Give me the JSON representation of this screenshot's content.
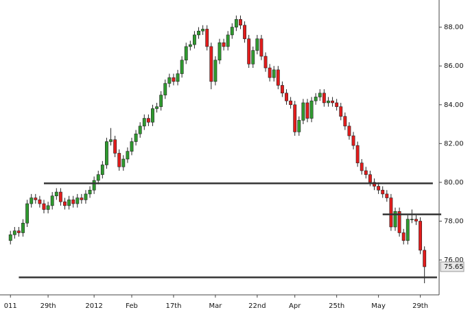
{
  "chart_data": {
    "type": "candlestick",
    "open": [
      77.0,
      77.3,
      77.5,
      77.4,
      77.9,
      78.9,
      79.2,
      79.1,
      78.9,
      78.6,
      78.8,
      79.3,
      79.5,
      79.0,
      78.8,
      79.1,
      78.9,
      79.2,
      79.1,
      79.4,
      79.6,
      80.1,
      80.4,
      80.9,
      82.1,
      82.2,
      81.5,
      80.8,
      81.2,
      81.6,
      82.1,
      82.5,
      82.9,
      83.3,
      83.1,
      83.8,
      83.9,
      84.5,
      85.1,
      85.4,
      85.2,
      85.6,
      86.3,
      87.0,
      87.1,
      87.6,
      87.8,
      87.9,
      87.0,
      85.2,
      86.3,
      87.2,
      87.0,
      87.6,
      88.0,
      88.4,
      88.1,
      87.4,
      86.1,
      86.8,
      87.4,
      86.5,
      85.9,
      85.4,
      85.8,
      85.0,
      84.6,
      84.2,
      84.0,
      82.6,
      83.2,
      84.1,
      83.3,
      84.2,
      84.4,
      84.6,
      84.1,
      84.2,
      84.1,
      83.9,
      83.4,
      82.9,
      82.4,
      81.9,
      81.0,
      80.6,
      80.4,
      80.0,
      79.8,
      79.6,
      79.4,
      79.2,
      77.7,
      78.5,
      77.4,
      77.0,
      78.1,
      78.1,
      78.0,
      76.5
    ],
    "high": [
      77.5,
      77.7,
      77.7,
      78.1,
      79.1,
      79.4,
      79.4,
      79.3,
      79.1,
      79.0,
      79.5,
      79.7,
      79.7,
      79.2,
      79.3,
      79.3,
      79.4,
      79.4,
      79.6,
      79.8,
      80.3,
      80.6,
      81.1,
      82.3,
      82.8,
      82.4,
      81.7,
      81.4,
      81.8,
      82.3,
      82.7,
      83.1,
      83.5,
      83.5,
      84.0,
      84.1,
      84.7,
      85.3,
      85.6,
      85.6,
      85.8,
      86.5,
      87.2,
      87.3,
      87.8,
      88.0,
      88.1,
      88.1,
      87.2,
      86.5,
      87.4,
      87.4,
      87.8,
      88.2,
      88.6,
      88.6,
      88.3,
      87.6,
      87.0,
      87.6,
      87.6,
      86.7,
      86.1,
      86.0,
      86.0,
      85.2,
      84.8,
      84.4,
      84.2,
      83.4,
      84.3,
      84.3,
      84.4,
      84.6,
      84.8,
      84.8,
      84.4,
      84.4,
      84.3,
      84.1,
      83.6,
      83.1,
      82.6,
      82.1,
      81.2,
      80.8,
      80.6,
      80.2,
      80.0,
      79.8,
      79.6,
      79.4,
      78.7,
      78.7,
      77.6,
      78.3,
      78.6,
      78.3,
      78.2,
      76.7
    ],
    "low": [
      76.8,
      77.1,
      77.2,
      77.2,
      77.7,
      78.7,
      78.9,
      78.7,
      78.4,
      78.4,
      78.6,
      79.1,
      78.8,
      78.6,
      78.6,
      78.7,
      78.7,
      78.9,
      78.9,
      79.2,
      79.4,
      79.9,
      80.2,
      80.7,
      81.9,
      81.3,
      80.6,
      80.6,
      81.0,
      81.4,
      81.9,
      82.3,
      82.7,
      82.9,
      82.9,
      83.6,
      83.7,
      84.3,
      84.9,
      85.0,
      85.0,
      85.4,
      86.1,
      86.8,
      86.9,
      87.4,
      87.6,
      86.8,
      84.8,
      85.0,
      86.1,
      86.8,
      86.8,
      87.4,
      87.8,
      87.9,
      87.2,
      85.9,
      85.9,
      86.6,
      86.3,
      85.7,
      85.2,
      85.2,
      84.8,
      84.4,
      84.0,
      83.8,
      82.4,
      82.4,
      83.0,
      83.1,
      83.1,
      84.0,
      84.2,
      83.9,
      83.9,
      83.9,
      83.7,
      83.2,
      82.7,
      82.2,
      81.7,
      80.8,
      80.4,
      80.2,
      79.8,
      79.6,
      79.4,
      79.2,
      79.0,
      77.5,
      77.5,
      77.2,
      76.8,
      76.8,
      77.9,
      77.8,
      76.3,
      74.8
    ],
    "close": [
      77.3,
      77.5,
      77.4,
      77.9,
      78.9,
      79.2,
      79.1,
      78.9,
      78.6,
      78.8,
      79.3,
      79.5,
      79.0,
      78.8,
      79.1,
      78.9,
      79.2,
      79.1,
      79.4,
      79.6,
      80.1,
      80.4,
      80.9,
      82.1,
      82.2,
      81.5,
      80.8,
      81.2,
      81.6,
      82.1,
      82.5,
      82.9,
      83.3,
      83.1,
      83.8,
      83.9,
      84.5,
      85.1,
      85.4,
      85.2,
      85.6,
      86.3,
      87.0,
      87.1,
      87.6,
      87.8,
      87.9,
      87.0,
      85.2,
      86.3,
      87.2,
      87.0,
      87.6,
      88.0,
      88.4,
      88.1,
      87.4,
      86.1,
      86.8,
      87.4,
      86.5,
      85.9,
      85.4,
      85.8,
      85.0,
      84.6,
      84.2,
      84.0,
      82.6,
      83.2,
      84.1,
      83.3,
      84.2,
      84.4,
      84.6,
      84.1,
      84.2,
      84.1,
      83.9,
      83.4,
      82.9,
      82.4,
      81.9,
      81.0,
      80.6,
      80.4,
      80.0,
      79.8,
      79.6,
      79.4,
      79.2,
      77.7,
      78.5,
      77.4,
      77.0,
      78.1,
      78.1,
      78.0,
      76.5,
      75.65
    ],
    "up_color": "#2f9a2f",
    "down_color": "#e21c1c",
    "xlim": [
      -2.5,
      102.5
    ],
    "xticks": [
      {
        "value": 0,
        "label": "011"
      },
      {
        "value": 9,
        "label": "29th"
      },
      {
        "value": 20,
        "label": "2012"
      },
      {
        "value": 29,
        "label": "Feb"
      },
      {
        "value": 39,
        "label": "17th"
      },
      {
        "value": 49,
        "label": "Mar"
      },
      {
        "value": 59,
        "label": "22nd"
      },
      {
        "value": 68,
        "label": "Apr"
      },
      {
        "value": 78,
        "label": "25th"
      },
      {
        "value": 88,
        "label": "May"
      },
      {
        "value": 98,
        "label": "29th"
      }
    ],
    "ylim": [
      74.2,
      89.4
    ],
    "yticks": [
      {
        "value": 76,
        "label": "76.00"
      },
      {
        "value": 78,
        "label": "78.00"
      },
      {
        "value": 80,
        "label": "80.00"
      },
      {
        "value": 82,
        "label": "82.00"
      },
      {
        "value": 84,
        "label": "84.00"
      },
      {
        "value": 86,
        "label": "86.00"
      },
      {
        "value": 88,
        "label": "88.00"
      }
    ],
    "last_price": {
      "value": 75.65,
      "label": "75.65"
    },
    "hlines": [
      {
        "value": 79.95,
        "from": 8,
        "to": 101
      },
      {
        "value": 78.35,
        "from": 89,
        "to": 103
      },
      {
        "value": 75.1,
        "from": 2,
        "to": 102
      }
    ],
    "line_color": "#333333"
  }
}
